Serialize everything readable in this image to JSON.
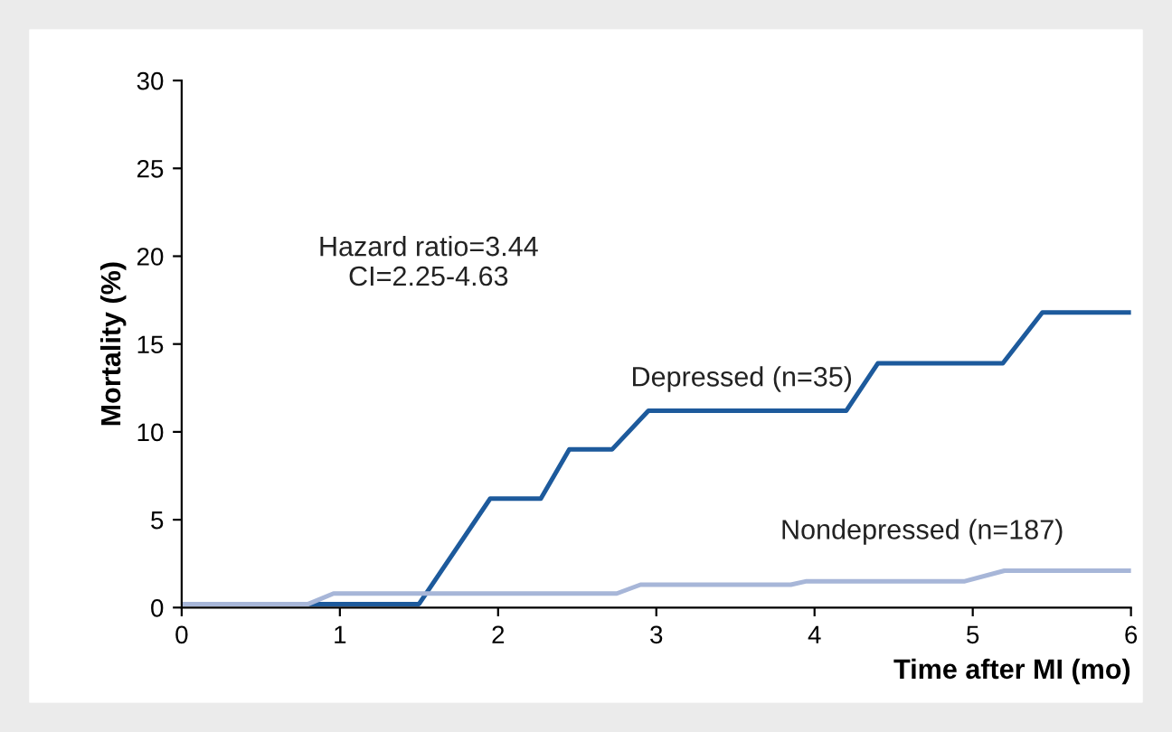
{
  "chart_data": {
    "type": "line",
    "xlabel": "Time after MI (mo)",
    "ylabel": "Mortality (%)",
    "xlim": [
      0,
      6
    ],
    "ylim": [
      0,
      30
    ],
    "xticks": [
      0,
      1,
      2,
      3,
      4,
      5,
      6
    ],
    "yticks": [
      0,
      5,
      10,
      15,
      20,
      25,
      30
    ],
    "grid": false,
    "legend": false,
    "marker": "none",
    "line_style": "solid",
    "annotations": [
      "Hazard ratio=3.44\nCI=2.25-4.63"
    ],
    "series": [
      {
        "name": "Depressed (n=35)",
        "color": "#1d5a9c",
        "x": [
          0,
          1.5,
          1.95,
          2.27,
          2.45,
          2.72,
          2.95,
          4.2,
          4.4,
          5.19,
          5.44,
          6
        ],
        "values": [
          0.2,
          0.2,
          6.2,
          6.2,
          9,
          9,
          11.2,
          11.2,
          13.9,
          13.9,
          16.8,
          16.8
        ]
      },
      {
        "name": "Nondepressed (n=187)",
        "color": "#a7b6d8",
        "x": [
          0,
          0.8,
          0.96,
          2.75,
          2.9,
          3.85,
          3.95,
          4.95,
          5.2,
          6
        ],
        "values": [
          0.2,
          0.2,
          0.8,
          0.8,
          1.3,
          1.3,
          1.5,
          1.5,
          2.1,
          2.1
        ]
      }
    ]
  }
}
